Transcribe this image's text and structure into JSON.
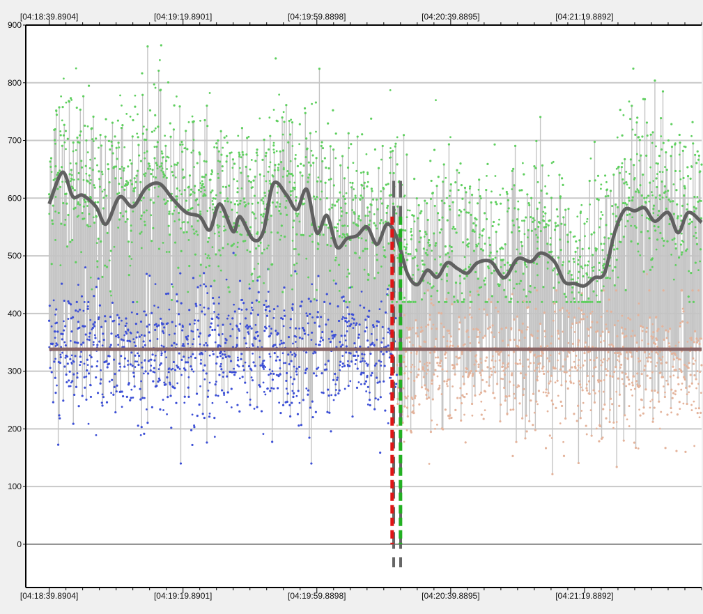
{
  "chart_data": {
    "type": "scatter",
    "title": "",
    "xlabel": "",
    "ylabel": "",
    "x_ticks": [
      "[04:18:39.8904]",
      "[04:19:19.8901]",
      "[04:19:59.8898]",
      "[04:20:39.8895]",
      "[04:21:19.8892]"
    ],
    "x_tick_seconds": [
      0,
      40,
      80,
      120,
      160
    ],
    "x_range_seconds": [
      -7,
      195
    ],
    "y_ticks": [
      0,
      100,
      200,
      300,
      400,
      500,
      600,
      700,
      800,
      900
    ],
    "ylim": [
      -75,
      900
    ],
    "grid": true,
    "legend": "none",
    "markers_seconds": {
      "red_dashed": 102.5,
      "green_dashed": 105.0,
      "gray_dashed": 104.0
    },
    "series": [
      {
        "role": "upper_samples",
        "color": "#5fcf5f",
        "x_range_seconds": [
          0,
          195
        ],
        "typical_range": [
          430,
          800
        ]
      },
      {
        "role": "lower_samples_before",
        "color": "#3c4fd6",
        "x_range_seconds": [
          0,
          104
        ],
        "typical_range": [
          190,
          460
        ]
      },
      {
        "role": "lower_samples_after",
        "color": "#e4b39b",
        "x_range_seconds": [
          104,
          195
        ],
        "typical_range": [
          160,
          420
        ]
      },
      {
        "role": "smoothed_trend",
        "color": "#606060",
        "x": [
          0,
          4,
          7,
          10,
          14,
          17,
          21,
          25,
          29,
          33,
          37,
          41,
          45,
          48,
          51,
          55,
          57,
          61,
          64,
          67,
          71,
          74,
          77,
          80,
          83,
          86,
          89,
          92,
          95,
          98,
          101,
          104,
          107,
          110,
          113,
          116,
          119,
          122,
          125,
          128,
          132,
          136,
          140,
          144,
          147,
          151,
          154,
          157,
          160,
          163,
          166,
          169,
          172,
          175,
          178,
          181,
          185,
          188,
          191,
          195
        ],
        "y": [
          590,
          645,
          603,
          605,
          585,
          555,
          602,
          585,
          618,
          625,
          598,
          575,
          568,
          545,
          590,
          542,
          568,
          528,
          542,
          625,
          605,
          580,
          615,
          540,
          570,
          515,
          530,
          535,
          550,
          520,
          555,
          530,
          470,
          450,
          475,
          463,
          488,
          478,
          470,
          488,
          490,
          462,
          495,
          490,
          505,
          490,
          455,
          452,
          448,
          462,
          470,
          540,
          580,
          578,
          583,
          560,
          575,
          540,
          575,
          558
        ]
      },
      {
        "role": "baseline",
        "color": "#8a6565",
        "value": 338
      }
    ]
  }
}
